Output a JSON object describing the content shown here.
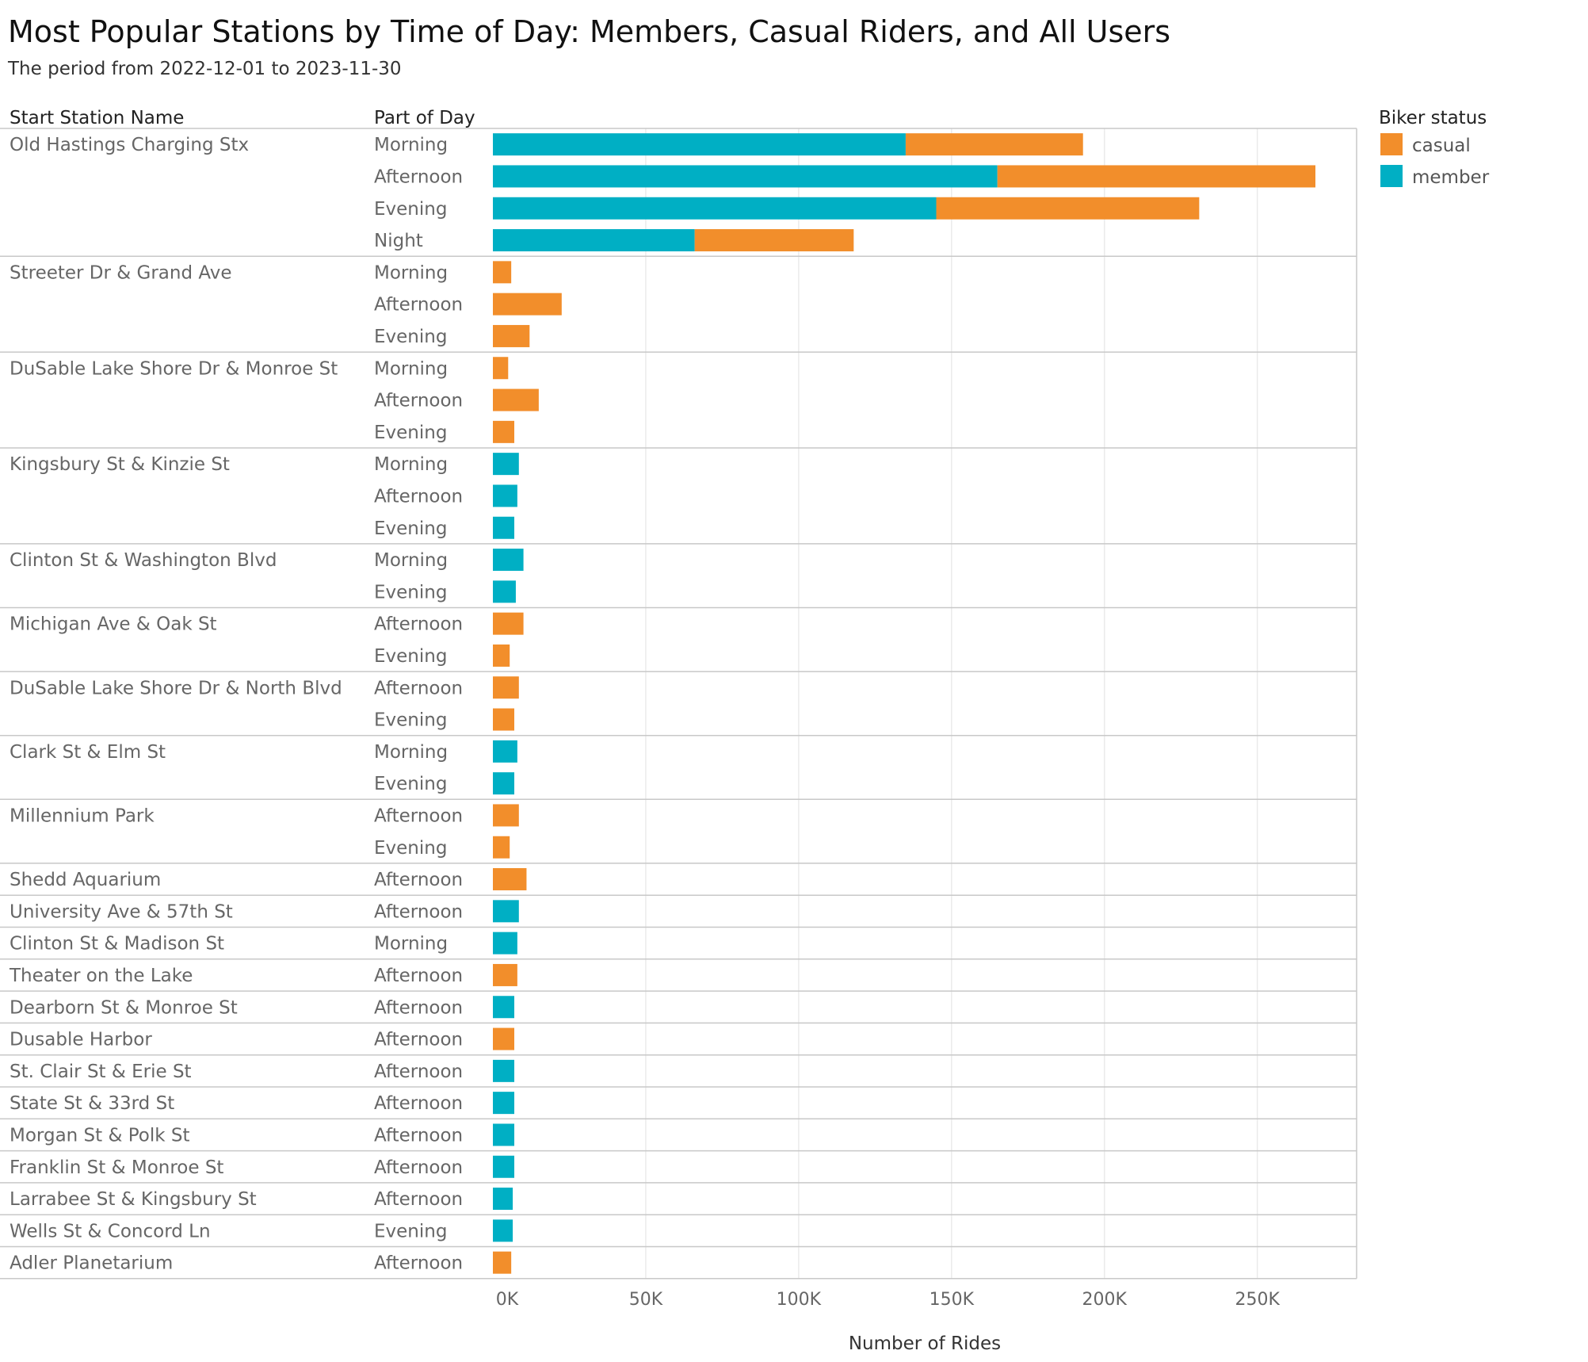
{
  "title": "Most Popular Stations by Time of Day: Members, Casual Riders, and All Users",
  "subtitle": "The period from 2022-12-01 to 2023-11-30",
  "colors": {
    "casual": "#F28E2B",
    "member": "#00AFC4",
    "grid": "#ebebeb",
    "divider": "#c8c8c8"
  },
  "chart_data": {
    "type": "bar",
    "orientation": "horizontal",
    "stacked": true,
    "xlabel": "Number of Rides",
    "xlim": [
      0,
      280000
    ],
    "x_ticks": [
      0,
      50000,
      100000,
      150000,
      200000,
      250000
    ],
    "x_tick_labels": [
      "0K",
      "50K",
      "100K",
      "150K",
      "200K",
      "250K"
    ],
    "row_headers": [
      "Start Station Name",
      "Part of Day"
    ],
    "legend": {
      "title": "Biker status",
      "placement": "top-right",
      "entries": [
        {
          "name": "casual",
          "color": "#F28E2B"
        },
        {
          "name": "member",
          "color": "#00AFC4"
        }
      ]
    },
    "grid": true,
    "stations": [
      {
        "name": "Old Hastings Charging Stx",
        "rows": [
          {
            "part": "Morning",
            "member": 135000,
            "casual": 58000
          },
          {
            "part": "Afternoon",
            "member": 165000,
            "casual": 104000
          },
          {
            "part": "Evening",
            "member": 145000,
            "casual": 86000
          },
          {
            "part": "Night",
            "member": 66000,
            "casual": 52000
          }
        ]
      },
      {
        "name": "Streeter Dr & Grand Ave",
        "rows": [
          {
            "part": "Morning",
            "member": 0,
            "casual": 6000
          },
          {
            "part": "Afternoon",
            "member": 0,
            "casual": 22500
          },
          {
            "part": "Evening",
            "member": 0,
            "casual": 12000
          }
        ]
      },
      {
        "name": "DuSable Lake Shore Dr & Monroe St",
        "rows": [
          {
            "part": "Morning",
            "member": 0,
            "casual": 5000
          },
          {
            "part": "Afternoon",
            "member": 0,
            "casual": 15000
          },
          {
            "part": "Evening",
            "member": 0,
            "casual": 7000
          }
        ]
      },
      {
        "name": "Kingsbury St & Kinzie St",
        "rows": [
          {
            "part": "Morning",
            "member": 8500,
            "casual": 0
          },
          {
            "part": "Afternoon",
            "member": 8000,
            "casual": 0
          },
          {
            "part": "Evening",
            "member": 7000,
            "casual": 0
          }
        ]
      },
      {
        "name": "Clinton St & Washington Blvd",
        "rows": [
          {
            "part": "Morning",
            "member": 10000,
            "casual": 0
          },
          {
            "part": "Evening",
            "member": 7500,
            "casual": 0
          }
        ]
      },
      {
        "name": "Michigan Ave & Oak St",
        "rows": [
          {
            "part": "Afternoon",
            "member": 0,
            "casual": 10000
          },
          {
            "part": "Evening",
            "member": 0,
            "casual": 5500
          }
        ]
      },
      {
        "name": "DuSable Lake Shore Dr & North Blvd",
        "rows": [
          {
            "part": "Afternoon",
            "member": 0,
            "casual": 8500
          },
          {
            "part": "Evening",
            "member": 0,
            "casual": 7000
          }
        ]
      },
      {
        "name": "Clark St & Elm St",
        "rows": [
          {
            "part": "Morning",
            "member": 8000,
            "casual": 0
          },
          {
            "part": "Evening",
            "member": 7000,
            "casual": 0
          }
        ]
      },
      {
        "name": "Millennium Park",
        "rows": [
          {
            "part": "Afternoon",
            "member": 0,
            "casual": 8500
          },
          {
            "part": "Evening",
            "member": 0,
            "casual": 5500
          }
        ]
      },
      {
        "name": "Shedd Aquarium",
        "rows": [
          {
            "part": "Afternoon",
            "member": 0,
            "casual": 11000
          }
        ]
      },
      {
        "name": "University Ave & 57th St",
        "rows": [
          {
            "part": "Afternoon",
            "member": 8500,
            "casual": 0
          }
        ]
      },
      {
        "name": "Clinton St & Madison St",
        "rows": [
          {
            "part": "Morning",
            "member": 8000,
            "casual": 0
          }
        ]
      },
      {
        "name": "Theater on the Lake",
        "rows": [
          {
            "part": "Afternoon",
            "member": 0,
            "casual": 8000
          }
        ]
      },
      {
        "name": "Dearborn St & Monroe St",
        "rows": [
          {
            "part": "Afternoon",
            "member": 7000,
            "casual": 0
          }
        ]
      },
      {
        "name": "Dusable Harbor",
        "rows": [
          {
            "part": "Afternoon",
            "member": 0,
            "casual": 7000
          }
        ]
      },
      {
        "name": "St. Clair St & Erie St",
        "rows": [
          {
            "part": "Afternoon",
            "member": 7000,
            "casual": 0
          }
        ]
      },
      {
        "name": "State St & 33rd St",
        "rows": [
          {
            "part": "Afternoon",
            "member": 7000,
            "casual": 0
          }
        ]
      },
      {
        "name": "Morgan St & Polk St",
        "rows": [
          {
            "part": "Afternoon",
            "member": 7000,
            "casual": 0
          }
        ]
      },
      {
        "name": "Franklin St & Monroe St",
        "rows": [
          {
            "part": "Afternoon",
            "member": 7000,
            "casual": 0
          }
        ]
      },
      {
        "name": "Larrabee St & Kingsbury St",
        "rows": [
          {
            "part": "Afternoon",
            "member": 6500,
            "casual": 0
          }
        ]
      },
      {
        "name": "Wells St & Concord Ln",
        "rows": [
          {
            "part": "Evening",
            "member": 6500,
            "casual": 0
          }
        ]
      },
      {
        "name": "Adler Planetarium",
        "rows": [
          {
            "part": "Afternoon",
            "member": 0,
            "casual": 6000
          }
        ]
      }
    ]
  }
}
